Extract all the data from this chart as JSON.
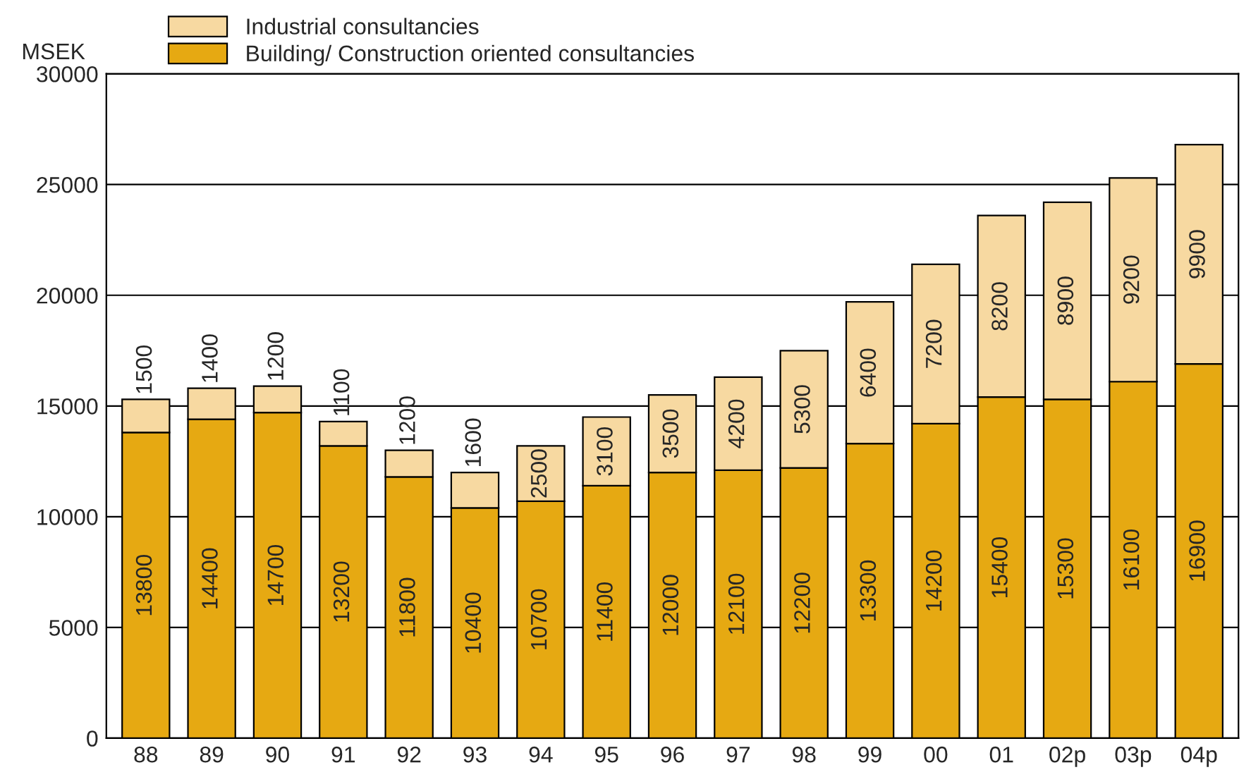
{
  "chart_data": {
    "type": "bar",
    "stacked": true,
    "ylabel": "MSEK",
    "categories": [
      "88",
      "89",
      "90",
      "91",
      "92",
      "93",
      "94",
      "95",
      "96",
      "97",
      "98",
      "99",
      "00",
      "01",
      "02p",
      "03p",
      "04p"
    ],
    "series": [
      {
        "name": "Building/ Construction oriented consultancies",
        "color": "#e6a912",
        "values": [
          13800,
          14400,
          14700,
          13200,
          11800,
          10400,
          10700,
          11400,
          12000,
          12100,
          12200,
          13300,
          14200,
          15400,
          15300,
          16100,
          16900
        ]
      },
      {
        "name": "Industrial consultancies",
        "color": "#f7d9a1",
        "values": [
          1500,
          1400,
          1200,
          1100,
          1200,
          1600,
          2500,
          3100,
          3500,
          4200,
          5300,
          6400,
          7200,
          8200,
          8900,
          9200,
          9900
        ]
      }
    ],
    "ylim": [
      0,
      30000
    ],
    "yticks": [
      0,
      5000,
      10000,
      15000,
      20000,
      25000,
      30000
    ],
    "grid": "y",
    "legend": "top left",
    "data_labels": true
  }
}
